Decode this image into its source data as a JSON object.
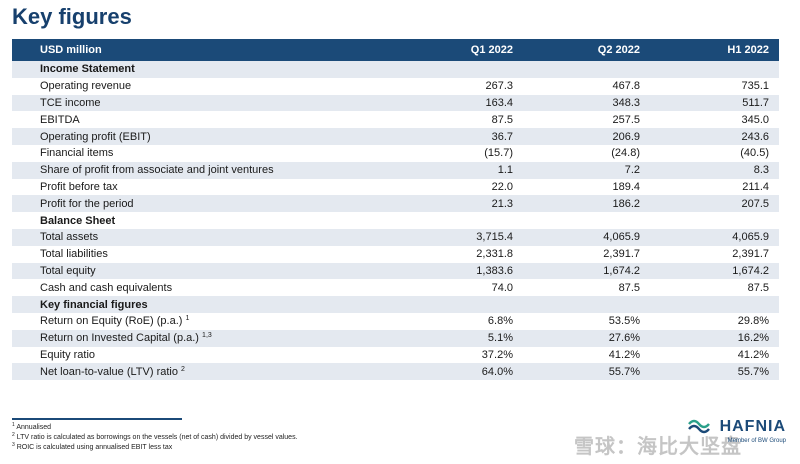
{
  "title": "Key figures",
  "header": [
    "USD million",
    "Q1 2022",
    "Q2 2022",
    "H1 2022"
  ],
  "rows": [
    {
      "section": "Income Statement"
    },
    {
      "label": "Operating revenue",
      "values": [
        "267.3",
        "467.8",
        "735.1"
      ]
    },
    {
      "label": "TCE income",
      "values": [
        "163.4",
        "348.3",
        "511.7"
      ]
    },
    {
      "label": "EBITDA",
      "values": [
        "87.5",
        "257.5",
        "345.0"
      ]
    },
    {
      "label": "Operating profit (EBIT)",
      "values": [
        "36.7",
        "206.9",
        "243.6"
      ]
    },
    {
      "label": "Financial items",
      "values": [
        "(15.7)",
        "(24.8)",
        "(40.5)"
      ]
    },
    {
      "label": "Share of profit from associate and joint ventures",
      "values": [
        "1.1",
        "7.2",
        "8.3"
      ]
    },
    {
      "label": "Profit before tax",
      "values": [
        "22.0",
        "189.4",
        "211.4"
      ]
    },
    {
      "label": "Profit for the period",
      "values": [
        "21.3",
        "186.2",
        "207.5"
      ]
    },
    {
      "section": "Balance Sheet"
    },
    {
      "label": "Total assets",
      "values": [
        "3,715.4",
        "4,065.9",
        "4,065.9"
      ]
    },
    {
      "label": "Total liabilities",
      "values": [
        "2,331.8",
        "2,391.7",
        "2,391.7"
      ]
    },
    {
      "label": "Total equity",
      "values": [
        "1,383.6",
        "1,674.2",
        "1,674.2"
      ]
    },
    {
      "label": "Cash and cash equivalents",
      "values": [
        "74.0",
        "87.5",
        "87.5"
      ]
    },
    {
      "section": "Key financial figures"
    },
    {
      "label": "Return on Equity (RoE) (p.a.)",
      "sup": "1",
      "values": [
        "6.8%",
        "53.5%",
        "29.8%"
      ]
    },
    {
      "label": "Return on Invested Capital (p.a.)",
      "sup": "1,3",
      "values": [
        "5.1%",
        "27.6%",
        "16.2%"
      ]
    },
    {
      "label": "Equity ratio",
      "values": [
        "37.2%",
        "41.2%",
        "41.2%"
      ]
    },
    {
      "label": "Net loan-to-value (LTV) ratio",
      "sup": "2",
      "values": [
        "64.0%",
        "55.7%",
        "55.7%"
      ]
    }
  ],
  "footnotes": [
    {
      "num": "1",
      "text": "Annualised"
    },
    {
      "num": "2",
      "text": "LTV ratio is calculated as borrowings on the vessels (net of cash) divided by vessel values."
    },
    {
      "num": "3",
      "text": "ROIC is calculated using annualised EBIT less tax"
    }
  ],
  "logo": {
    "brand": "HAFNIA",
    "sub": "Member of BW Group",
    "watermark": "雪球：海比大坚盘"
  }
}
